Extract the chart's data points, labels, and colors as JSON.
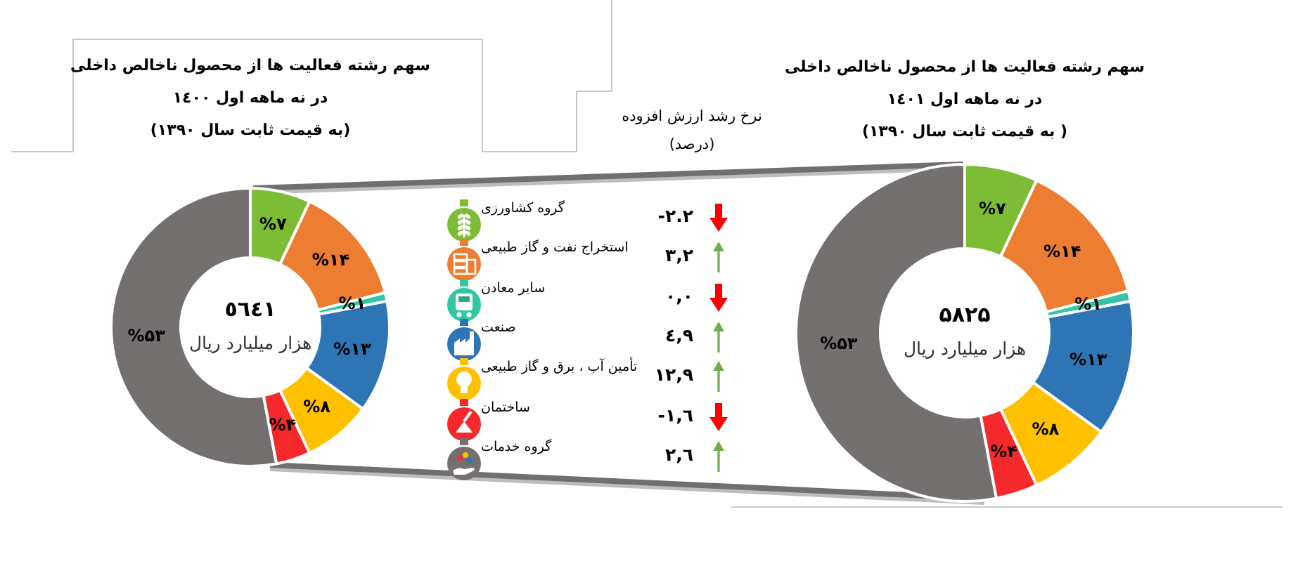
{
  "chart_data": [
    {
      "type": "donut",
      "title": "سهم رشته فعالیت ها از محصول ناخالص داخلی\nدر نه ماهه اول ١٤٠٠",
      "subtitle": "(به قیمت ثابت سال ١٣٩٠)",
      "categories": [
        null,
        null,
        null,
        null,
        null,
        null,
        null
      ],
      "values": [
        7,
        14,
        1,
        13,
        8,
        4,
        53
      ],
      "colors": [
        "#7dbd35",
        "#ed7d31",
        "#2fc7a4",
        "#2e75b6",
        "#ffc000",
        "#f5292b",
        "#747070"
      ],
      "value_labels": [
        "%۷",
        "%۱۴",
        "%۱",
        "%۱۳",
        "%۸",
        "%۴",
        "%۵۳"
      ],
      "annotations": [
        "٥٦٤١",
        "هزار میلیارد ریال"
      ]
    },
    {
      "type": "other",
      "title": "نرخ رشد ارزش افزوده",
      "subtitle": "(درصد)",
      "categories": [
        "گروه کشاورزی",
        "استخراج نفت و گاز طبیعی",
        "سایر معادن",
        "صنعت",
        "تأمین آب ، برق و گاز طبیعی",
        "ساختمان",
        "گروه خدمات"
      ],
      "values": [
        -2.2,
        3.2,
        0,
        4.9,
        12.9,
        -1.6,
        2.6
      ],
      "value_labels": [
        "-٢.٢",
        "٣,٢",
        "٠,٠",
        "٤,٩",
        "١٢,٩",
        "-١,٦",
        "٢,٦"
      ],
      "colors": [
        "#ff0000",
        "#70ad47",
        "#ff0000",
        "#70ad47",
        "#70ad47",
        "#ff0000",
        "#70ad47"
      ]
    },
    {
      "type": "donut",
      "title": "سهم رشته فعالیت ها از محصول ناخالص داخلی\nدر نه ماهه اول ١٤٠١",
      "subtitle": "( به قیمت ثابت سال ١٣٩٠)",
      "categories": [
        null,
        null,
        null,
        null,
        null,
        null,
        null
      ],
      "values": [
        7,
        14,
        1,
        13,
        8,
        4,
        53
      ],
      "colors": [
        "#7dbd35",
        "#ed7d31",
        "#2fc7a4",
        "#2e75b6",
        "#ffc000",
        "#f5292b",
        "#747070"
      ],
      "value_labels": [
        "%۷",
        "%۱۴",
        "%۱",
        "%۱۳",
        "%۸",
        "%۴",
        "%۵۳"
      ],
      "annotations": [
        "۵۸۲۵",
        "هزار میلیارد ریال"
      ]
    }
  ]
}
